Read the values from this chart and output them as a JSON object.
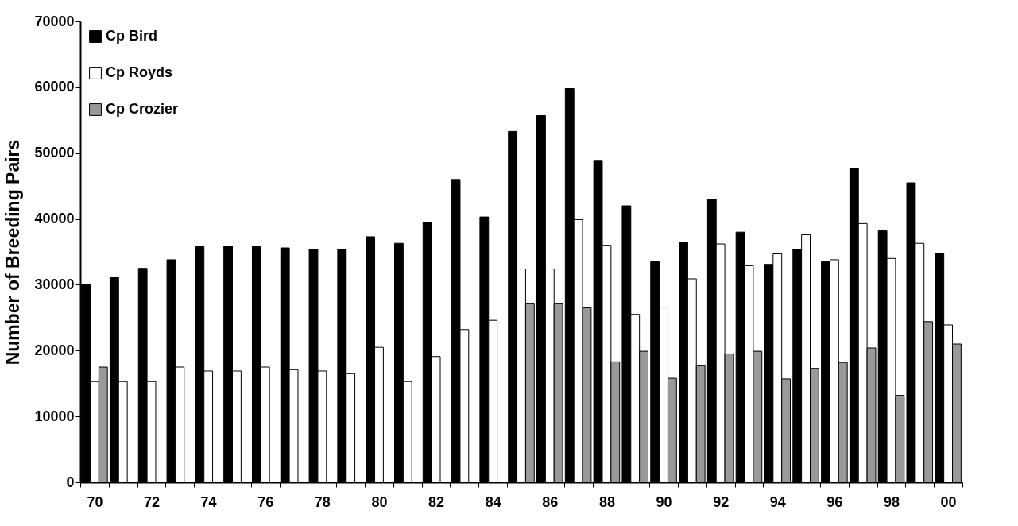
{
  "chart_data": {
    "type": "bar",
    "ylabel": "Number of Breeding Pairs",
    "categories": [
      "70",
      null,
      "72",
      null,
      "74",
      null,
      "76",
      null,
      "78",
      null,
      "80",
      null,
      "82",
      null,
      "84",
      null,
      "86",
      null,
      "88",
      null,
      "90",
      null,
      "92",
      null,
      "94",
      null,
      "96",
      null,
      "98",
      null,
      "00"
    ],
    "series": [
      {
        "name": "Cp Bird",
        "color": "#000000",
        "values": [
          30000,
          31200,
          32500,
          33800,
          35900,
          35900,
          35900,
          35600,
          35400,
          35400,
          37300,
          36300,
          39500,
          46000,
          40300,
          53300,
          55700,
          59800,
          48900,
          42000,
          33500,
          36500,
          43000,
          38000,
          33100,
          35400,
          33500,
          47700,
          38200,
          45500,
          34700
        ]
      },
      {
        "name": "Cp Royds",
        "color": "#ffffff",
        "values": [
          15300,
          15300,
          15300,
          17500,
          16900,
          16900,
          17500,
          17100,
          16900,
          16500,
          20500,
          15300,
          19100,
          23200,
          24600,
          32400,
          32400,
          39900,
          36000,
          25500,
          26600,
          30900,
          36200,
          32900,
          34700,
          37600,
          33800,
          39300,
          34000,
          36300,
          23900
        ]
      },
      {
        "name": "Cp Crozier",
        "color": "#999999",
        "values": [
          17500,
          null,
          null,
          null,
          null,
          null,
          null,
          null,
          null,
          null,
          null,
          null,
          null,
          null,
          null,
          27200,
          27200,
          26500,
          18300,
          19900,
          15800,
          17700,
          19500,
          19900,
          15700,
          17300,
          18200,
          20400,
          13200,
          24400,
          21000
        ]
      }
    ],
    "ylim": [
      0,
      70000
    ],
    "yticks": [
      0,
      10000,
      20000,
      30000,
      40000,
      50000,
      60000,
      70000
    ],
    "legend": "top left"
  }
}
